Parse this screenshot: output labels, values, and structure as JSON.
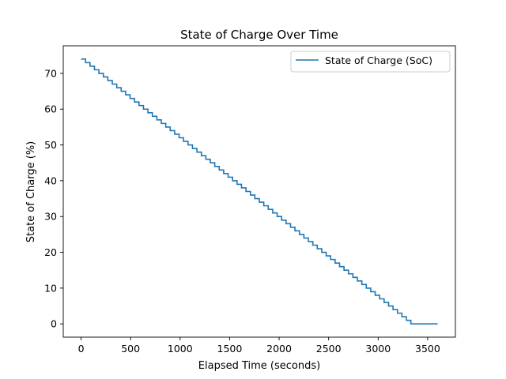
{
  "chart_data": {
    "type": "line",
    "title": "State of Charge Over Time",
    "xlabel": "Elapsed Time (seconds)",
    "ylabel": "State of Charge (%)",
    "xlim": [
      -180,
      3780
    ],
    "ylim": [
      -3.7,
      77.7
    ],
    "xticks": [
      0,
      500,
      1000,
      1500,
      2000,
      2500,
      3000,
      3500
    ],
    "yticks": [
      0,
      10,
      20,
      30,
      40,
      50,
      60,
      70
    ],
    "grid": false,
    "legend": "top-right",
    "series": [
      {
        "name": "State of Charge (SoC)",
        "color": "#1f77b4",
        "step": "post",
        "x": [
          0,
          3600
        ],
        "start_soc": 74,
        "step_seconds": 45,
        "min_soc": 0
      }
    ]
  }
}
